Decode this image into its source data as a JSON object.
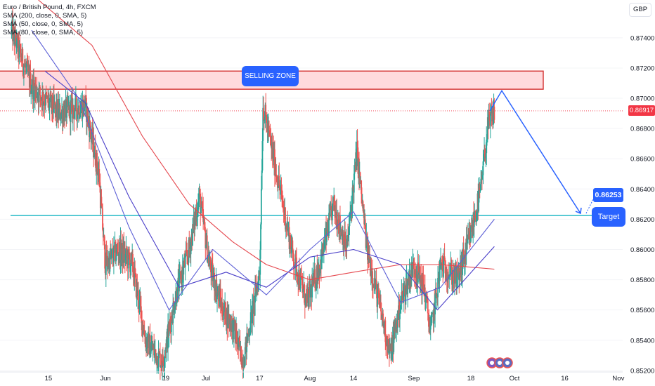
{
  "legend": {
    "symbol": "Euro / British Pound, 4h, FXCM",
    "sma200": "SMA (200, close, 0, SMA, 5)",
    "sma50": "SMA (50, close, 0, SMA, 5)",
    "sma80": "SMA (80, close, 0, SMA, 5)"
  },
  "currency_label": "GBP",
  "last_price": "0.86917",
  "annotations": {
    "selling_zone": "SELLING ZONE",
    "target_value": "0.86253",
    "target_label": "Target"
  },
  "colors": {
    "up": "#26a69a",
    "down": "#ef5350",
    "sma200": "#e5474e",
    "sma50": "#5c5fd6",
    "sma80": "#4a3fc9",
    "zone_fill": "#ffcdd2",
    "zone_border": "#d32f2f",
    "support": "#22b8c6",
    "arrow": "#2962ff",
    "label_bg": "#2962ff"
  },
  "chart_data": {
    "type": "candlestick",
    "ylim": [
      0.8519,
      0.8765
    ],
    "y_ticks": [
      "0.87400",
      "0.87200",
      "0.87000",
      "0.86800",
      "0.86600",
      "0.86400",
      "0.86200",
      "0.86000",
      "0.85800",
      "0.85600",
      "0.85400",
      "0.85200"
    ],
    "x_ticks": [
      "15",
      "Jun",
      "19",
      "Jul",
      "17",
      "Aug",
      "14",
      "Sep",
      "18",
      "Oct",
      "16",
      "Nov"
    ],
    "selling_zone": [
      0.8706,
      0.8718
    ],
    "support_level": 0.86225,
    "projection": {
      "from": 0.8705,
      "to": 0.86225
    },
    "close_path": [
      {
        "date": "May 4",
        "close": 0.8745
      },
      {
        "date": "May 10",
        "close": 0.8708
      },
      {
        "date": "May 18",
        "close": 0.869
      },
      {
        "date": "May 26",
        "close": 0.8695
      },
      {
        "date": "May 30",
        "close": 0.865
      },
      {
        "date": "Jun 1",
        "close": 0.859
      },
      {
        "date": "Jun 5",
        "close": 0.86
      },
      {
        "date": "Jun 9",
        "close": 0.859
      },
      {
        "date": "Jun 13",
        "close": 0.854
      },
      {
        "date": "Jun 18",
        "close": 0.8525
      },
      {
        "date": "Jun 22",
        "close": 0.857
      },
      {
        "date": "Jun 26",
        "close": 0.86
      },
      {
        "date": "Jun 29",
        "close": 0.8635
      },
      {
        "date": "Jul 2",
        "close": 0.859
      },
      {
        "date": "Jul 6",
        "close": 0.856
      },
      {
        "date": "Jul 9",
        "close": 0.855
      },
      {
        "date": "Jul 12",
        "close": 0.8525
      },
      {
        "date": "Jul 17",
        "close": 0.8585
      },
      {
        "date": "Jul 18",
        "close": 0.8695
      },
      {
        "date": "Jul 23",
        "close": 0.864
      },
      {
        "date": "Jul 27",
        "close": 0.8595
      },
      {
        "date": "Jul 31",
        "close": 0.8565
      },
      {
        "date": "Aug 4",
        "close": 0.859
      },
      {
        "date": "Aug 8",
        "close": 0.863
      },
      {
        "date": "Aug 12",
        "close": 0.86
      },
      {
        "date": "Aug 15",
        "close": 0.8665
      },
      {
        "date": "Aug 18",
        "close": 0.86
      },
      {
        "date": "Aug 22",
        "close": 0.856
      },
      {
        "date": "Aug 25",
        "close": 0.853
      },
      {
        "date": "Aug 28",
        "close": 0.8565
      },
      {
        "date": "Sep 1",
        "close": 0.859
      },
      {
        "date": "Sep 4",
        "close": 0.8575
      },
      {
        "date": "Sep 6",
        "close": 0.8545
      },
      {
        "date": "Sep 9",
        "close": 0.859
      },
      {
        "date": "Sep 14",
        "close": 0.858
      },
      {
        "date": "Sep 18",
        "close": 0.861
      },
      {
        "date": "Sep 21",
        "close": 0.864
      },
      {
        "date": "Sep 23",
        "close": 0.868
      },
      {
        "date": "Sep 25",
        "close": 0.86917
      }
    ],
    "sma_50": [
      {
        "date": "May 10",
        "value": 0.8745
      },
      {
        "date": "May 24",
        "value": 0.87
      },
      {
        "date": "Jun 8",
        "value": 0.8615
      },
      {
        "date": "Jun 20",
        "value": 0.856
      },
      {
        "date": "Jul 3",
        "value": 0.86
      },
      {
        "date": "Jul 19",
        "value": 0.857
      },
      {
        "date": "Aug 1",
        "value": 0.86
      },
      {
        "date": "Aug 14",
        "value": 0.8625
      },
      {
        "date": "Aug 28",
        "value": 0.8565
      },
      {
        "date": "Sep 9",
        "value": 0.8575
      },
      {
        "date": "Sep 25",
        "value": 0.862
      }
    ],
    "sma_80": [
      {
        "date": "May 14",
        "value": 0.8718
      },
      {
        "date": "May 26",
        "value": 0.8697
      },
      {
        "date": "Jun 8",
        "value": 0.8635
      },
      {
        "date": "Jun 23",
        "value": 0.8575
      },
      {
        "date": "Jul 7",
        "value": 0.8585
      },
      {
        "date": "Jul 19",
        "value": 0.8575
      },
      {
        "date": "Aug 1",
        "value": 0.8595
      },
      {
        "date": "Aug 14",
        "value": 0.86
      },
      {
        "date": "Aug 28",
        "value": 0.859
      },
      {
        "date": "Sep 8",
        "value": 0.856
      },
      {
        "date": "Sep 25",
        "value": 0.8602
      }
    ],
    "sma_200": [
      {
        "date": "May 12",
        "value": 0.8765
      },
      {
        "date": "May 28",
        "value": 0.8735
      },
      {
        "date": "Jun 12",
        "value": 0.8675
      },
      {
        "date": "Jun 26",
        "value": 0.863
      },
      {
        "date": "Jul 9",
        "value": 0.8605
      },
      {
        "date": "Jul 19",
        "value": 0.859
      },
      {
        "date": "Aug 1",
        "value": 0.858
      },
      {
        "date": "Aug 14",
        "value": 0.8585
      },
      {
        "date": "Aug 28",
        "value": 0.859
      },
      {
        "date": "Sep 9",
        "value": 0.859
      },
      {
        "date": "Sep 25",
        "value": 0.8587
      }
    ]
  }
}
